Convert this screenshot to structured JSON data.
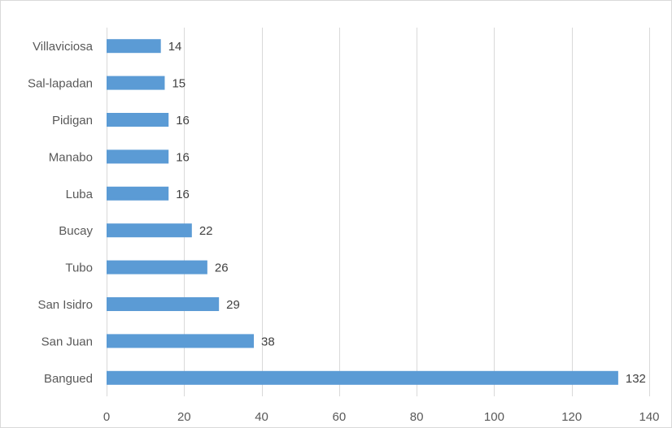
{
  "chart_data": {
    "type": "bar",
    "orientation": "horizontal",
    "categories": [
      "Villaviciosa",
      "Sal-lapadan",
      "Pidigan",
      "Manabo",
      "Luba",
      "Bucay",
      "Tubo",
      "San Isidro",
      "San Juan",
      "Bangued"
    ],
    "values": [
      14,
      15,
      16,
      16,
      16,
      22,
      26,
      29,
      38,
      132
    ],
    "data_labels": [
      "14",
      "15",
      "16",
      "16",
      "16",
      "22",
      "26",
      "29",
      "38",
      "132"
    ],
    "xlim": [
      0,
      140
    ],
    "x_ticks": [
      0,
      20,
      40,
      60,
      80,
      100,
      120,
      140
    ],
    "x_tick_labels": [
      "0",
      "20",
      "40",
      "60",
      "80",
      "100",
      "120",
      "140"
    ],
    "grid": true,
    "legend": "none",
    "title": "",
    "xlabel": "",
    "ylabel": "",
    "bar_color": "#5b9bd5",
    "grid_color": "#d9d9d9"
  }
}
